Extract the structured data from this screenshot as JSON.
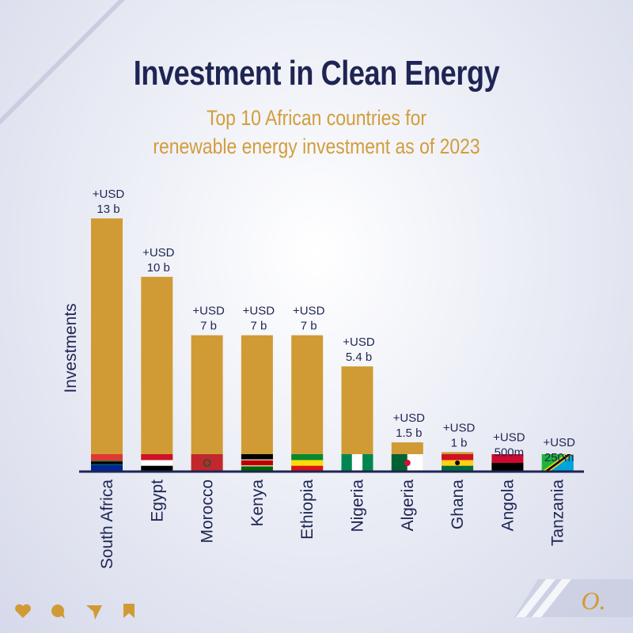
{
  "chart_data": {
    "type": "bar",
    "title": "Investment in Clean Energy",
    "subtitle": [
      "Top 10 African countries for",
      "renewable energy investment as of 2023"
    ],
    "ylabel": "Investments",
    "xlabel": "",
    "unit": "USD billion",
    "categories": [
      "South Africa",
      "Egypt",
      "Morocco",
      "Kenya",
      "Ethiopia",
      "Nigeria",
      "Algeria",
      "Ghana",
      "Angola",
      "Tanzania"
    ],
    "values": [
      13,
      10,
      7,
      7,
      7,
      5.4,
      1.5,
      1,
      0.5,
      0.25
    ],
    "data_labels": [
      [
        "+USD",
        "13 b"
      ],
      [
        "+USD",
        "10 b"
      ],
      [
        "+USD",
        "7 b"
      ],
      [
        "+USD",
        "7 b"
      ],
      [
        "+USD",
        "7 b"
      ],
      [
        "+USD",
        "5.4 b"
      ],
      [
        "+USD",
        "1.5 b"
      ],
      [
        "+USD",
        "1 b"
      ],
      [
        "+USD",
        "500m"
      ],
      [
        "+USD",
        "250m"
      ]
    ],
    "bar_color": "#d09b35",
    "axis_color": "#1f2553",
    "title_color": "#1f2553",
    "subtitle_color": "#d29d3a",
    "flag_icons": [
      "south-africa-flag-icon",
      "egypt-flag-icon",
      "morocco-flag-icon",
      "kenya-flag-icon",
      "ethiopia-flag-icon",
      "nigeria-flag-icon",
      "algeria-flag-icon",
      "ghana-flag-icon",
      "angola-flag-icon",
      "tanzania-flag-icon"
    ]
  },
  "footer": {
    "icons": [
      "heart-icon",
      "comment-icon",
      "share-icon",
      "bookmark-icon"
    ],
    "logo_text": "O."
  }
}
